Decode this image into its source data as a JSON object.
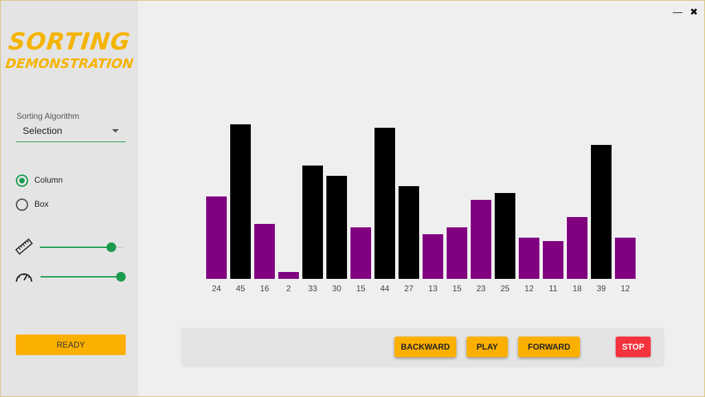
{
  "app": {
    "logo_line1": "SORTING",
    "logo_line2": "DEMONSTRATION"
  },
  "sidebar": {
    "algorithm_label": "Sorting Algorithm",
    "algorithm_value": "Selection",
    "display_modes": [
      {
        "label": "Column",
        "selected": true
      },
      {
        "label": "Box",
        "selected": false
      }
    ],
    "size_slider": {
      "icon": "ruler-icon",
      "value": 0.85
    },
    "speed_slider": {
      "icon": "speedometer-icon",
      "value": 1.0
    },
    "status_button": "READY"
  },
  "window_controls": {
    "minimize": "—",
    "close": "✖"
  },
  "chart_data": {
    "type": "bar",
    "values": [
      24,
      45,
      16,
      2,
      33,
      30,
      15,
      44,
      27,
      13,
      15,
      23,
      25,
      12,
      11,
      18,
      39,
      12
    ],
    "highlighted": [
      false,
      true,
      false,
      false,
      true,
      true,
      false,
      true,
      true,
      false,
      false,
      false,
      true,
      false,
      false,
      false,
      true,
      false
    ],
    "colors": {
      "normal": "#800080",
      "highlight": "#000000"
    }
  },
  "controls": {
    "backward": "BACKWARD",
    "play": "PLAY",
    "forward": "FORWARD",
    "stop": "STOP"
  },
  "colors": {
    "accent": "#f5b400",
    "green": "#1b9b4e",
    "stop": "#f5333f"
  }
}
